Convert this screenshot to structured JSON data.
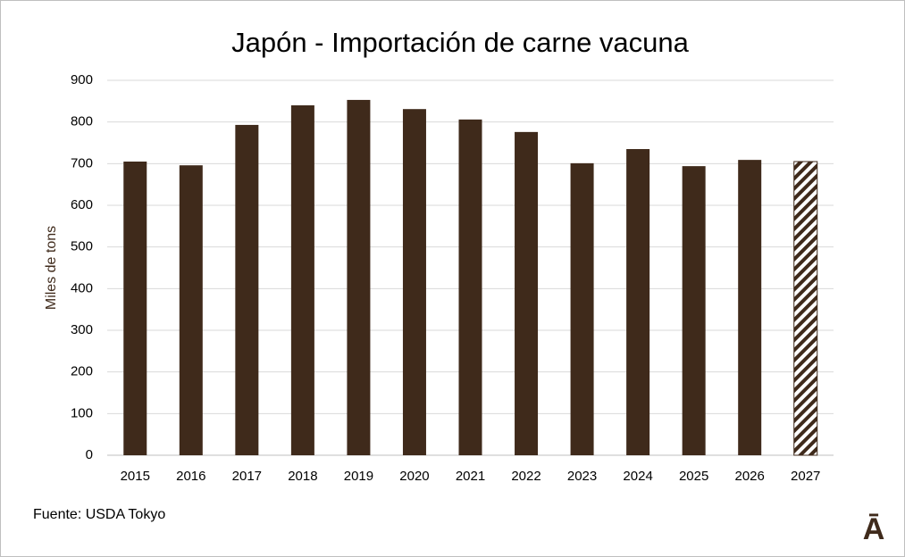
{
  "chart_data": {
    "type": "bar",
    "title": "Japón - Importación de carne vacuna",
    "y_label": "Miles de tons",
    "categories": [
      "2015",
      "2016",
      "2017",
      "2018",
      "2019",
      "2020",
      "2021",
      "2022",
      "2023",
      "2024",
      "2025",
      "2026",
      "2027"
    ],
    "values": [
      705,
      696,
      793,
      840,
      853,
      831,
      806,
      776,
      701,
      735,
      694,
      709,
      705
    ],
    "patterns": [
      "solid",
      "solid",
      "solid",
      "solid",
      "solid",
      "solid",
      "solid",
      "solid",
      "solid",
      "solid",
      "solid",
      "solid",
      "hatched"
    ],
    "color": "#3f2a1b",
    "ylim": [
      0,
      900
    ],
    "yticks": [
      0,
      100,
      200,
      300,
      400,
      500,
      600,
      700,
      800,
      900
    ],
    "grid": true,
    "source": "Fuente: USDA Tokyo",
    "logo": "Ā"
  }
}
